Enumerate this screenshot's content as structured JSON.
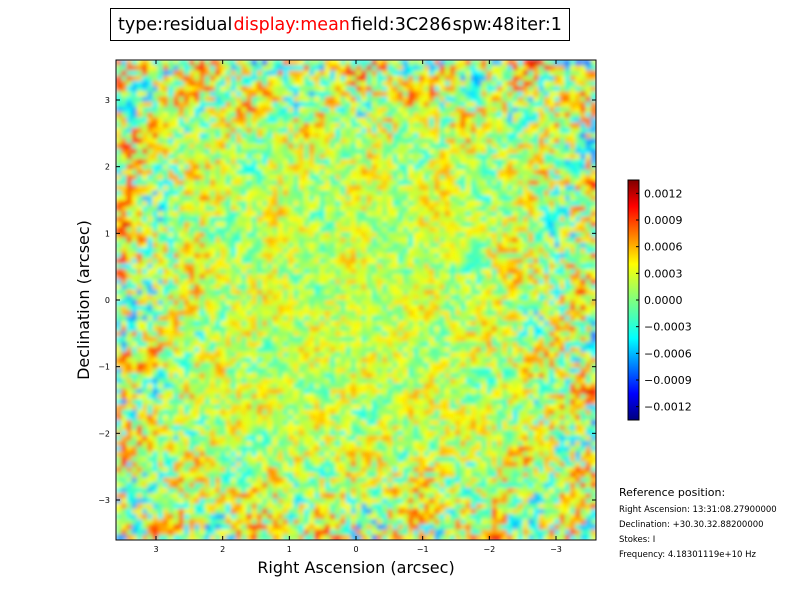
{
  "title_bar": {
    "parts": [
      {
        "text": "type:residual",
        "color": "#000000"
      },
      {
        "text": "display:mean",
        "color": "#ff0000"
      },
      {
        "text": "field:3C286",
        "color": "#000000"
      },
      {
        "text": "spw:48",
        "color": "#000000"
      },
      {
        "text": "iter:1",
        "color": "#000000"
      }
    ]
  },
  "chart_data": {
    "type": "heatmap",
    "xlabel": "Right Ascension (arcsec)",
    "ylabel": "Declination (arcsec)",
    "xlim": [
      3.6,
      -3.6
    ],
    "ylim": [
      -3.6,
      3.6
    ],
    "xticks": [
      3,
      2,
      1,
      0,
      -1,
      -2,
      -3
    ],
    "xtick_labels": [
      "3",
      "2",
      "1",
      "0",
      "−1",
      "−2",
      "−3"
    ],
    "yticks": [
      3,
      2,
      1,
      0,
      -1,
      -2,
      -3
    ],
    "ytick_labels": [
      "3",
      "2",
      "1",
      "0",
      "−1",
      "−2",
      "−3"
    ],
    "colormap": "jet",
    "colorbar": {
      "range": [
        -0.00135,
        0.00135
      ],
      "ticks": [
        0.0012,
        0.0009,
        0.0006,
        0.0003,
        0.0,
        -0.0003,
        -0.0006,
        -0.0009,
        -0.0012
      ],
      "tick_labels": [
        "0.0012",
        "0.0009",
        "0.0006",
        "0.0003",
        "0.0000",
        "−0.0003",
        "−0.0006",
        "−0.0009",
        "−0.0012"
      ]
    },
    "grid": false
  },
  "reference": {
    "title": "Reference position:",
    "lines": [
      "Right Ascension: 13:31:08.27900000",
      "Declination: +30.30.32.88200000",
      "Stokes: I",
      "Frequency: 4.18301119e+10 Hz"
    ]
  }
}
